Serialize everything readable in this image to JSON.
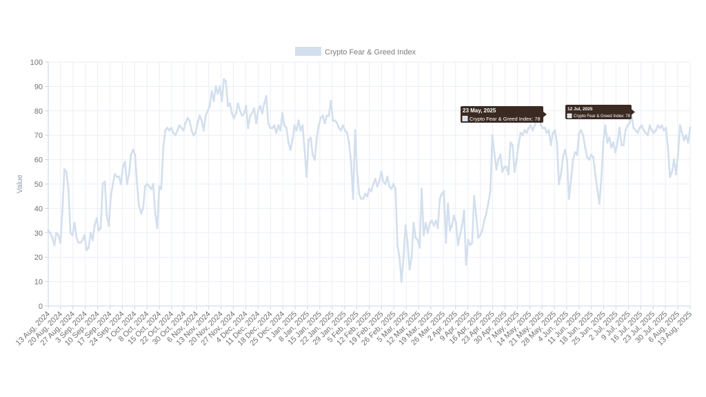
{
  "chart_data": {
    "type": "line",
    "title": "",
    "xlabel": "",
    "ylabel": "Value",
    "ylim": [
      0,
      100
    ],
    "yticks": [
      0,
      10,
      20,
      30,
      40,
      50,
      60,
      70,
      80,
      90,
      100
    ],
    "grid": true,
    "legend_position": "top-center",
    "colors": {
      "line": "#d3dfed",
      "grid": "#e9eef5",
      "axis": "#c9d6e6",
      "tooltip_bg": "#3a2a22"
    },
    "x_tick_labels": [
      "13 Aug, 2024",
      "20 Aug, 2024",
      "27 Aug, 2024",
      "3 Sep, 2024",
      "10 Sep, 2024",
      "17 Sep, 2024",
      "24 Sep, 2024",
      "1 Oct, 2024",
      "8 Oct, 2024",
      "15 Oct, 2024",
      "22 Oct, 2024",
      "30 Oct, 2024",
      "6 Nov, 2024",
      "13 Nov, 2024",
      "20 Nov, 2024",
      "27 Nov, 2024",
      "4 Dec, 2024",
      "11 Dec, 2024",
      "18 Dec, 2024",
      "25 Dec, 2024",
      "1 Jan, 2025",
      "8 Jan, 2025",
      "15 Jan, 2025",
      "22 Jan, 2025",
      "29 Jan, 2025",
      "5 Feb, 2025",
      "12 Feb, 2025",
      "19 Feb, 2025",
      "26 Feb, 2025",
      "5 Mar, 2025",
      "12 Mar, 2025",
      "19 Mar, 2025",
      "26 Mar, 2025",
      "2 Apr, 2025",
      "9 Apr, 2025",
      "16 Apr, 2025",
      "23 Apr, 2025",
      "30 Apr, 2025",
      "7 May, 2025",
      "14 May, 2025",
      "21 May, 2025",
      "28 May, 2025",
      "4 Jun, 2025",
      "11 Jun, 2025",
      "18 Jun, 2025",
      "25 Jun, 2025",
      "2 Jul, 2025",
      "9 Jul, 2025",
      "16 Jul, 2025",
      "23 Jul, 2025",
      "30 Jul, 2025",
      "6 Aug, 2025",
      "13 Aug, 2025"
    ],
    "series": [
      {
        "name": "Crypto Fear & Greed Index",
        "values": [
          31,
          30,
          28,
          25,
          30,
          29,
          26,
          39,
          56,
          55,
          48,
          30,
          29,
          34,
          28,
          26,
          26,
          27,
          29,
          23,
          24,
          30,
          27,
          33,
          36,
          31,
          32,
          50,
          51,
          37,
          33,
          45,
          50,
          54,
          53,
          53,
          50,
          57,
          59,
          50,
          54,
          62,
          64,
          62,
          50,
          41,
          38,
          40,
          49,
          50,
          49,
          48,
          50,
          38,
          32,
          49,
          48,
          65,
          72,
          73,
          72,
          73,
          71,
          70,
          72,
          74,
          73,
          72,
          75,
          77,
          76,
          72,
          70,
          71,
          75,
          78,
          76,
          72,
          78,
          80,
          82,
          88,
          84,
          90,
          87,
          90,
          84,
          93,
          92,
          82,
          83,
          79,
          77,
          79,
          83,
          80,
          78,
          79,
          82,
          73,
          78,
          79,
          81,
          75,
          80,
          82,
          79,
          83,
          86,
          75,
          73,
          73,
          74,
          71,
          74,
          72,
          79,
          74,
          73,
          67,
          64,
          68,
          74,
          72,
          76,
          72,
          74,
          64,
          53,
          68,
          69,
          62,
          60,
          69,
          74,
          77,
          78,
          75,
          78,
          78,
          84,
          76,
          76,
          75,
          73,
          72,
          74,
          72,
          71,
          67,
          59,
          44,
          72,
          55,
          46,
          44,
          44,
          46,
          45,
          48,
          47,
          50,
          52,
          49,
          51,
          55,
          51,
          50,
          53,
          49,
          48,
          50,
          48,
          25,
          20,
          10,
          20,
          33,
          26,
          15,
          20,
          34,
          28,
          27,
          24,
          48,
          29,
          34,
          30,
          34,
          35,
          33,
          35,
          32,
          44,
          46,
          47,
          26,
          42,
          31,
          33,
          37,
          34,
          25,
          29,
          33,
          39,
          17,
          27,
          25,
          26,
          45,
          37,
          28,
          29,
          31,
          35,
          38,
          42,
          47,
          70,
          63,
          56,
          60,
          62,
          55,
          57,
          57,
          54,
          67,
          66,
          55,
          60,
          66,
          71,
          70,
          72,
          71,
          73,
          74,
          72,
          74,
          76,
          78,
          74,
          73,
          73,
          71,
          72,
          66,
          71,
          72,
          67,
          50,
          54,
          61,
          64,
          60,
          44,
          52,
          60,
          63,
          62,
          71,
          72,
          70,
          65,
          61,
          60,
          62,
          61,
          54,
          48,
          42,
          52,
          67,
          74,
          67,
          69,
          65,
          67,
          63,
          67,
          73,
          66,
          66,
          72,
          74,
          75,
          78,
          73,
          72,
          71,
          73,
          74,
          72,
          71,
          70,
          74,
          72,
          71,
          72,
          74,
          73,
          74,
          72,
          73,
          65,
          53,
          55,
          60,
          54,
          62,
          74,
          71,
          68,
          70,
          67,
          73
        ]
      }
    ],
    "tooltips": [
      {
        "title": "23 May, 2025",
        "label": "Crypto Fear & Greed Index: 78"
      },
      {
        "title": "12 Jul, 2025",
        "label": "Crypto Fear & Greed Index: 78"
      }
    ]
  }
}
